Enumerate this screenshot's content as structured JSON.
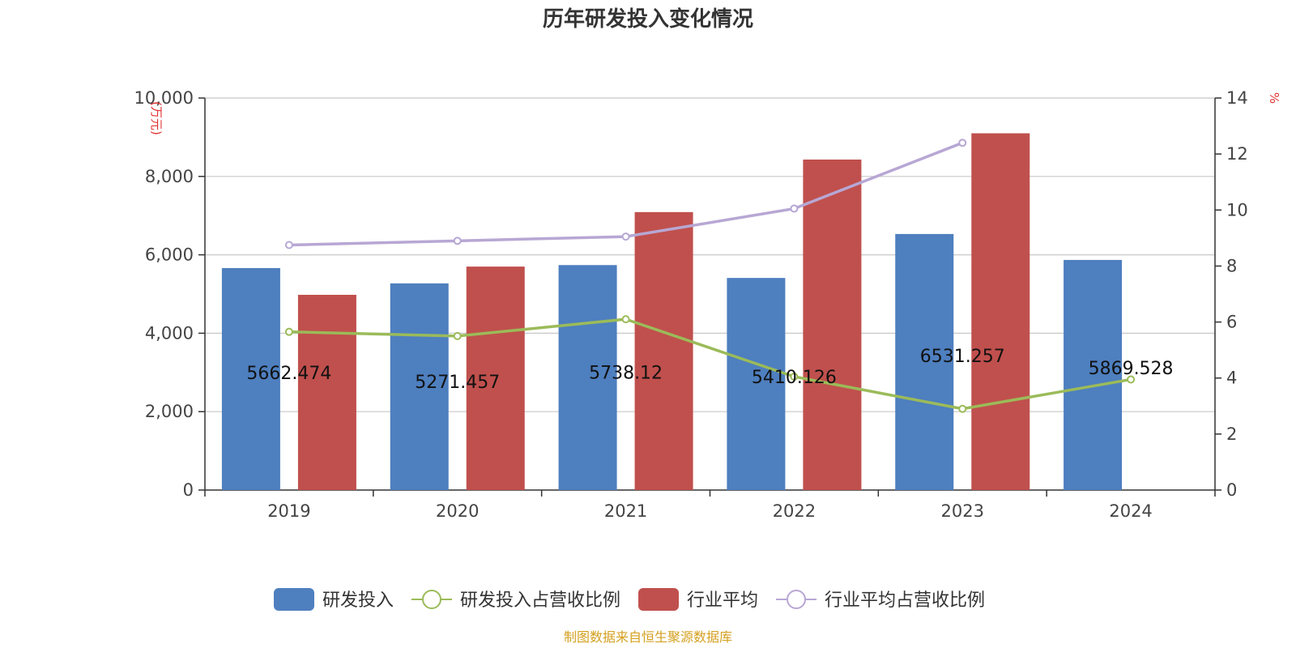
{
  "chart_data": {
    "type": "bar",
    "title": "历年研发投入变化情况",
    "categories": [
      "2019",
      "2020",
      "2021",
      "2022",
      "2023",
      "2024"
    ],
    "y_left": {
      "unit": "万元",
      "ylim": [
        0,
        10000
      ],
      "ticks": [
        "0",
        "2,000",
        "4,000",
        "6,000",
        "8,000",
        "10,000"
      ],
      "tick_values": [
        0,
        2000,
        4000,
        6000,
        8000,
        10000
      ]
    },
    "y_right": {
      "unit": "%",
      "ylim": [
        0,
        14
      ],
      "ticks": [
        "0",
        "2",
        "4",
        "6",
        "8",
        "10",
        "12",
        "14"
      ],
      "tick_values": [
        0,
        2,
        4,
        6,
        8,
        10,
        12,
        14
      ]
    },
    "series": [
      {
        "name": "研发投入",
        "type": "bar",
        "axis": "left",
        "color": "#4e7fbf",
        "values": [
          5662.474,
          5271.457,
          5738.12,
          5410.126,
          6531.257,
          5869.528
        ],
        "labels": [
          "5662.474",
          "5271.457",
          "5738.12",
          "5410.126",
          "6531.257",
          "5869.528"
        ]
      },
      {
        "name": "研发投入占营收比例",
        "type": "line",
        "axis": "right",
        "color": "#9bbb59",
        "values": [
          5.65,
          5.5,
          6.1,
          4.05,
          2.9,
          3.95
        ]
      },
      {
        "name": "行业平均",
        "type": "bar",
        "axis": "left",
        "color": "#c0504d",
        "values": [
          4980,
          5700,
          7090,
          8430,
          9100,
          null
        ]
      },
      {
        "name": "行业平均占营收比例",
        "type": "line",
        "axis": "right",
        "color": "#b7a7d4",
        "values": [
          8.75,
          8.9,
          9.05,
          10.05,
          12.4,
          null
        ]
      }
    ],
    "grid": true,
    "legend_position": "bottom-center"
  },
  "footer": {
    "source": "制图数据来自恒生聚源数据库",
    "source_color": "#d4a020"
  }
}
